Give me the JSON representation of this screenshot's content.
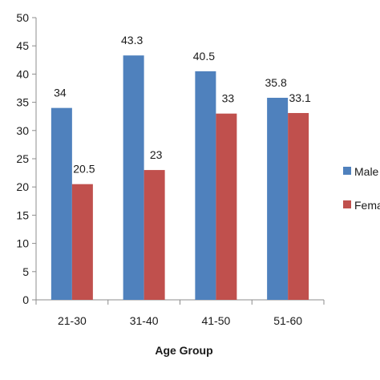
{
  "chart_data": {
    "type": "bar",
    "title": "",
    "xlabel": "Age Group",
    "ylabel": "",
    "categories": [
      "21-30",
      "31-40",
      "41-50",
      "51-60"
    ],
    "series": [
      {
        "name": "Male",
        "values": [
          34,
          43.3,
          40.5,
          35.8
        ],
        "color": "#4f81bd",
        "labels": [
          "34",
          "43.3",
          "40.5",
          "35.8"
        ]
      },
      {
        "name": "Fema",
        "values": [
          20.5,
          23,
          33,
          33.1
        ],
        "color": "#c0504d",
        "labels": [
          "20.5",
          "23",
          "33",
          "33.1"
        ]
      }
    ],
    "ylim": [
      0,
      50
    ],
    "yticks": [
      0,
      5,
      10,
      15,
      20,
      25,
      30,
      35,
      40,
      45,
      50
    ],
    "grid": false,
    "legend_position": "right"
  }
}
